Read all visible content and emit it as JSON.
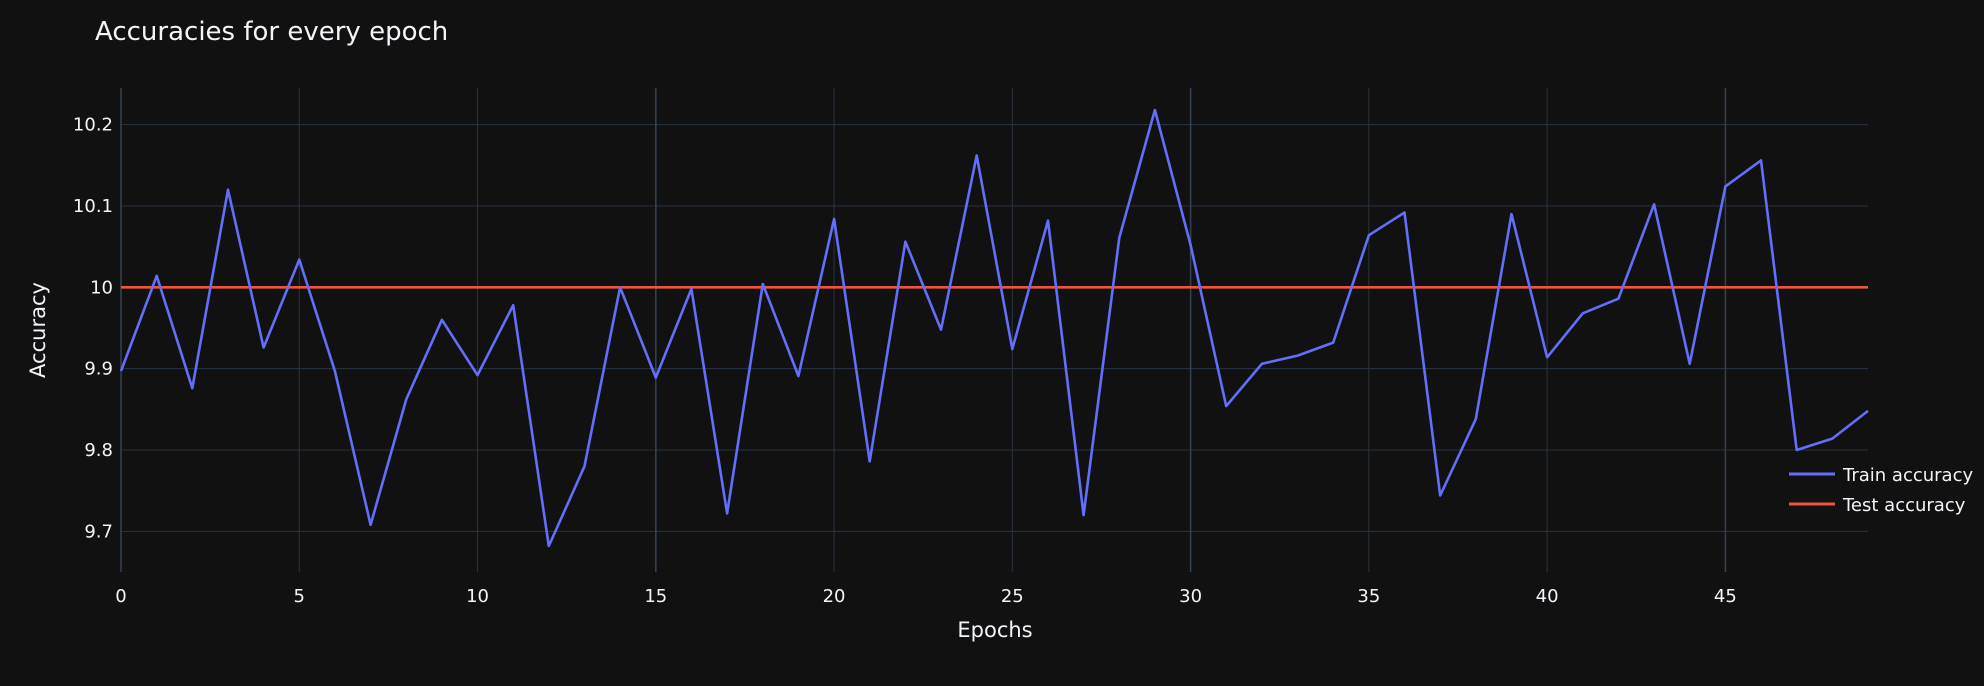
{
  "chart_data": {
    "type": "line",
    "title": "Accuracies for every epoch",
    "xlabel": "Epochs",
    "ylabel": "Accuracy",
    "xlim": [
      0,
      49
    ],
    "ylim": [
      9.65,
      10.245
    ],
    "x_ticks": [
      0,
      5,
      10,
      15,
      20,
      25,
      30,
      35,
      40,
      45
    ],
    "y_ticks": [
      9.7,
      9.8,
      9.9,
      10,
      10.1,
      10.2
    ],
    "y_tick_labels": [
      "9.7",
      "9.8",
      "9.9",
      "10",
      "10.1",
      "10.2"
    ],
    "grid": true,
    "legend_position": "right",
    "series": [
      {
        "name": "Train accuracy",
        "color": "#636efa",
        "x": [
          0,
          1,
          2,
          3,
          4,
          5,
          6,
          7,
          8,
          9,
          10,
          11,
          12,
          13,
          14,
          15,
          16,
          17,
          18,
          19,
          20,
          21,
          22,
          23,
          24,
          25,
          26,
          27,
          28,
          29,
          30,
          31,
          32,
          33,
          34,
          35,
          36,
          37,
          38,
          39,
          40,
          41,
          42,
          43,
          44,
          45,
          46,
          47,
          48,
          49
        ],
        "values": [
          9.897,
          10.014,
          9.876,
          10.12,
          9.926,
          10.034,
          9.897,
          9.708,
          9.862,
          9.96,
          9.892,
          9.978,
          9.682,
          9.78,
          10.0,
          9.889,
          9.998,
          9.722,
          10.004,
          9.891,
          10.084,
          9.786,
          10.056,
          9.948,
          10.162,
          9.924,
          10.082,
          9.72,
          10.061,
          10.218,
          10.052,
          9.854,
          9.906,
          9.916,
          9.932,
          10.064,
          10.092,
          9.744,
          9.838,
          10.09,
          9.914,
          9.968,
          9.986,
          10.102,
          9.906,
          10.124,
          10.156,
          9.8,
          9.814,
          9.848
        ]
      },
      {
        "name": "Test accuracy",
        "color": "#ef553b",
        "x": [
          0,
          1,
          2,
          3,
          4,
          5,
          6,
          7,
          8,
          9,
          10,
          11,
          12,
          13,
          14,
          15,
          16,
          17,
          18,
          19,
          20,
          21,
          22,
          23,
          24,
          25,
          26,
          27,
          28,
          29,
          30,
          31,
          32,
          33,
          34,
          35,
          36,
          37,
          38,
          39,
          40,
          41,
          42,
          43,
          44,
          45,
          46,
          47,
          48,
          49
        ],
        "values": [
          10,
          10,
          10,
          10,
          10,
          10,
          10,
          10,
          10,
          10,
          10,
          10,
          10,
          10,
          10,
          10,
          10,
          10,
          10,
          10,
          10,
          10,
          10,
          10,
          10,
          10,
          10,
          10,
          10,
          10,
          10,
          10,
          10,
          10,
          10,
          10,
          10,
          10,
          10,
          10,
          10,
          10,
          10,
          10,
          10,
          10,
          10,
          10,
          10,
          10
        ]
      }
    ]
  }
}
